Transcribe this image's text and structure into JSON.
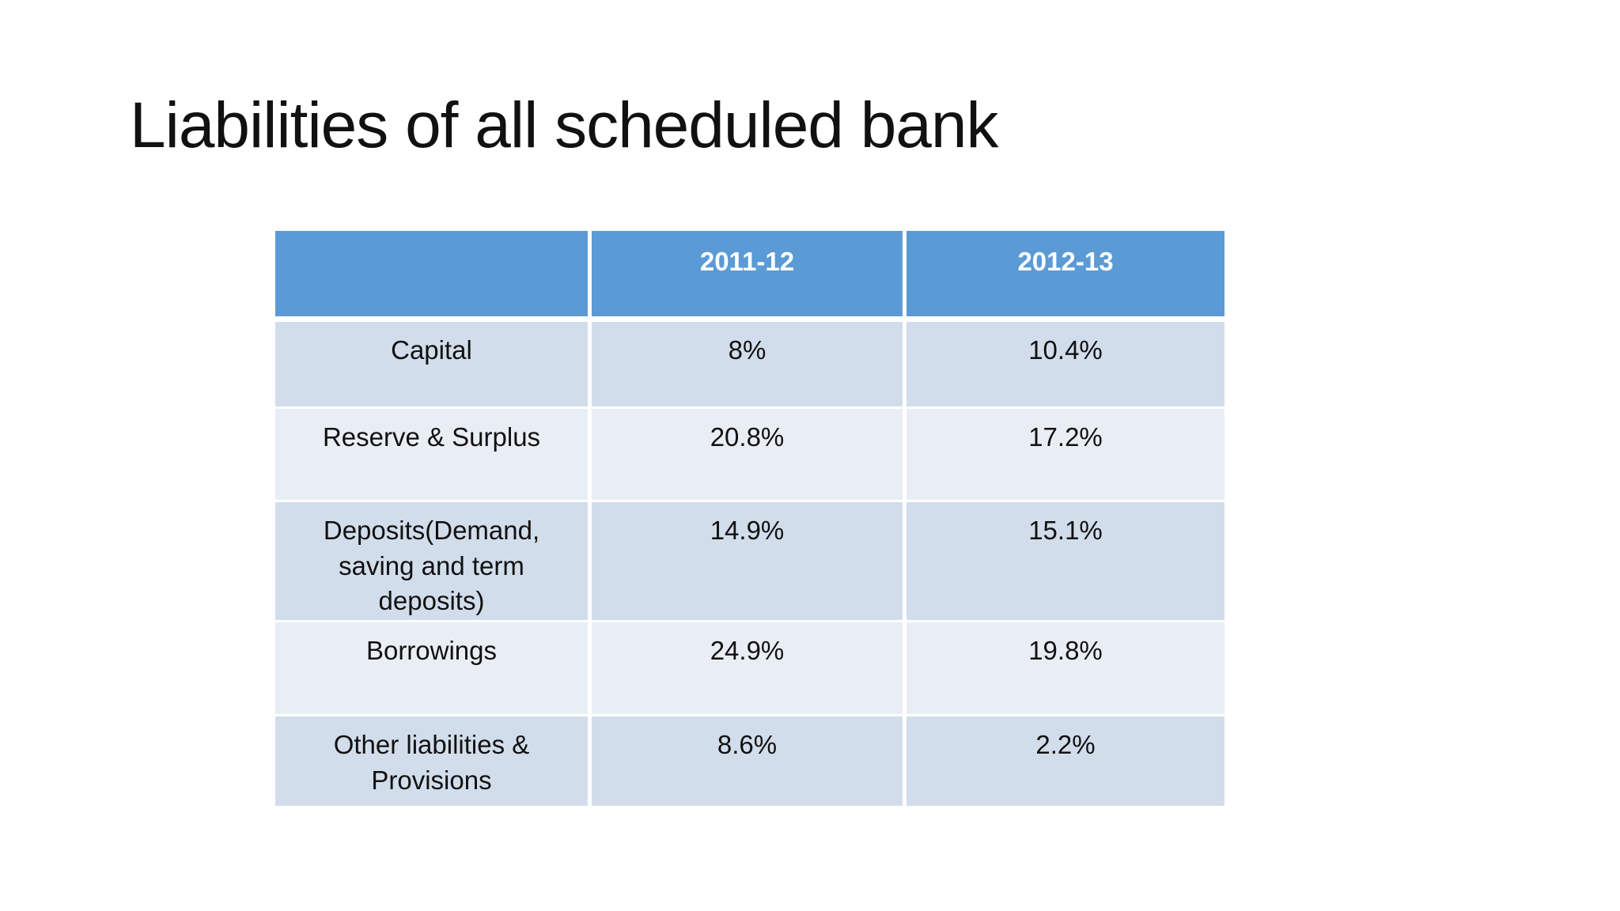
{
  "slide": {
    "title": "Liabilities of all scheduled bank"
  },
  "table": {
    "columns": [
      "",
      "2011-12",
      "2012-13"
    ],
    "rows": [
      {
        "label": "Capital",
        "values": [
          "8%",
          "10.4%"
        ]
      },
      {
        "label": "Reserve & Surplus",
        "values": [
          "20.8%",
          "17.2%"
        ]
      },
      {
        "label": "Deposits(Demand, saving and term deposits)",
        "values": [
          "14.9%",
          "15.1%"
        ]
      },
      {
        "label": "Borrowings",
        "values": [
          "24.9%",
          "19.8%"
        ]
      },
      {
        "label": "Other liabilities & Provisions",
        "values": [
          "8.6%",
          "2.2%"
        ]
      }
    ]
  },
  "colors": {
    "header_bg": "#5B9BD5",
    "header_text": "#FFFFFF",
    "row_odd_bg": "#D2DDEB",
    "row_even_bg": "#E9EEF5",
    "body_text": "#111111"
  }
}
